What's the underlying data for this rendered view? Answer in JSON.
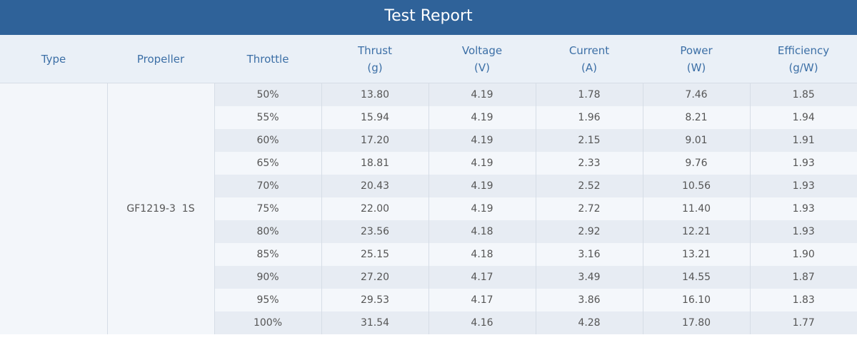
{
  "header": {
    "title": "Test Report"
  },
  "table": {
    "columns": [
      {
        "name": "Type"
      },
      {
        "name": "Propeller"
      },
      {
        "name": "Throttle"
      },
      {
        "name": "Thrust",
        "unit": "(g)"
      },
      {
        "name": "Voltage",
        "unit": "(V)"
      },
      {
        "name": "Current",
        "unit": "(A)"
      },
      {
        "name": "Power",
        "unit": "(W)"
      },
      {
        "name": "Efficiency",
        "unit": "(g/W)"
      }
    ],
    "propeller": "GF1219-3  1S",
    "rows": [
      [
        "50%",
        "13.80",
        "4.19",
        "1.78",
        "7.46",
        "1.85"
      ],
      [
        "55%",
        "15.94",
        "4.19",
        "1.96",
        "8.21",
        "1.94"
      ],
      [
        "60%",
        "17.20",
        "4.19",
        "2.15",
        "9.01",
        "1.91"
      ],
      [
        "65%",
        "18.81",
        "4.19",
        "2.33",
        "9.76",
        "1.93"
      ],
      [
        "70%",
        "20.43",
        "4.19",
        "2.52",
        "10.56",
        "1.93"
      ],
      [
        "75%",
        "22.00",
        "4.19",
        "2.72",
        "11.40",
        "1.93"
      ],
      [
        "80%",
        "23.56",
        "4.18",
        "2.92",
        "12.21",
        "1.93"
      ],
      [
        "85%",
        "25.15",
        "4.18",
        "3.16",
        "13.21",
        "1.90"
      ],
      [
        "90%",
        "27.20",
        "4.17",
        "3.49",
        "14.55",
        "1.87"
      ],
      [
        "95%",
        "29.53",
        "4.17",
        "3.86",
        "16.10",
        "1.83"
      ],
      [
        "100%",
        "31.54",
        "4.16",
        "4.28",
        "17.80",
        "1.77"
      ]
    ]
  }
}
